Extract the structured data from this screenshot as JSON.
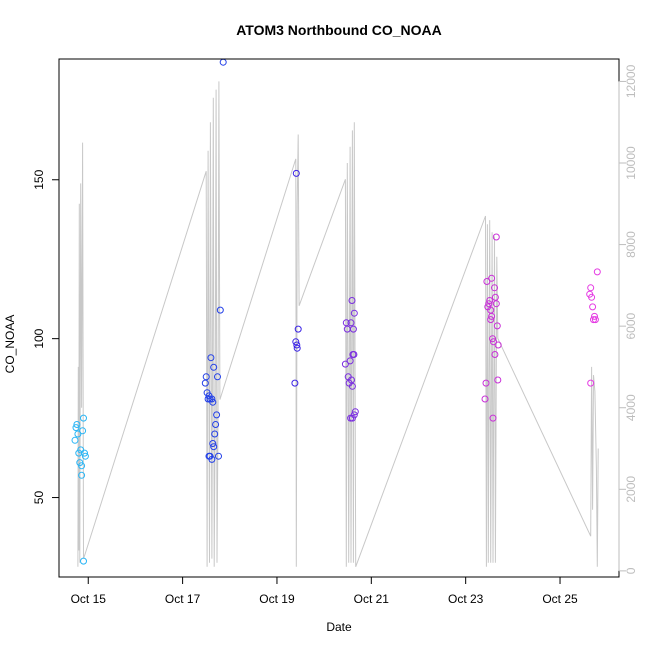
{
  "chart_data": {
    "type": "scatter",
    "title": "ATOM3 Northbound CO_NOAA",
    "xlabel": "Date",
    "ylabel": "CO_NOAA",
    "xlim": [
      14.38,
      26.25
    ],
    "ylim": [
      25,
      188
    ],
    "y2lim": [
      -150,
      12550
    ],
    "grid": false,
    "x_ticks": [
      {
        "value": 15,
        "label": "Oct 15"
      },
      {
        "value": 17,
        "label": "Oct 17"
      },
      {
        "value": 19,
        "label": "Oct 19"
      },
      {
        "value": 21,
        "label": "Oct 21"
      },
      {
        "value": 23,
        "label": "Oct 23"
      },
      {
        "value": 25,
        "label": "Oct 25"
      }
    ],
    "y_ticks": [
      50,
      100,
      150
    ],
    "y2_ticks": [
      0,
      2000,
      4000,
      6000,
      8000,
      10000,
      12000
    ],
    "altitude_series": {
      "color": "#c8c8c8",
      "points": [
        [
          14.78,
          100
        ],
        [
          14.79,
          5000
        ],
        [
          14.8,
          500
        ],
        [
          14.81,
          9000
        ],
        [
          14.82,
          200
        ],
        [
          14.84,
          9500
        ],
        [
          14.86,
          4000
        ],
        [
          14.88,
          10500
        ],
        [
          14.9,
          300
        ],
        [
          14.93,
          400
        ],
        [
          17.5,
          9800
        ],
        [
          17.52,
          100
        ],
        [
          17.54,
          10300
        ],
        [
          17.57,
          200
        ],
        [
          17.59,
          11000
        ],
        [
          17.62,
          300
        ],
        [
          17.65,
          11600
        ],
        [
          17.67,
          100
        ],
        [
          17.69,
          4000
        ],
        [
          17.71,
          11800
        ],
        [
          17.73,
          200
        ],
        [
          17.75,
          3700
        ],
        [
          17.77,
          12000
        ],
        [
          17.79,
          4200
        ],
        [
          19.4,
          10100
        ],
        [
          19.41,
          100
        ],
        [
          19.43,
          9000
        ],
        [
          19.45,
          10700
        ],
        [
          19.47,
          6500
        ],
        [
          20.45,
          9600
        ],
        [
          20.47,
          100
        ],
        [
          20.49,
          10000
        ],
        [
          20.52,
          200
        ],
        [
          20.55,
          10400
        ],
        [
          20.57,
          200
        ],
        [
          20.6,
          10800
        ],
        [
          20.62,
          200
        ],
        [
          20.64,
          11000
        ],
        [
          20.67,
          100
        ],
        [
          23.42,
          8700
        ],
        [
          23.44,
          100
        ],
        [
          23.46,
          8500
        ],
        [
          23.48,
          200
        ],
        [
          23.51,
          8600
        ],
        [
          23.53,
          200
        ],
        [
          23.56,
          8300
        ],
        [
          23.58,
          200
        ],
        [
          23.61,
          8200
        ],
        [
          23.63,
          200
        ],
        [
          23.66,
          7700
        ],
        [
          23.68,
          5700
        ],
        [
          25.65,
          850
        ],
        [
          25.67,
          5000
        ],
        [
          25.69,
          1500
        ],
        [
          25.71,
          4800
        ],
        [
          25.74,
          4400
        ],
        [
          25.77,
          2500
        ],
        [
          25.79,
          100
        ],
        [
          25.81,
          3000
        ]
      ]
    },
    "series": [
      {
        "color": "#29b6f6",
        "points": [
          [
            14.72,
            68
          ],
          [
            14.74,
            72
          ],
          [
            14.76,
            73
          ],
          [
            14.78,
            70
          ],
          [
            14.8,
            64
          ],
          [
            14.82,
            61
          ],
          [
            14.84,
            65
          ],
          [
            14.86,
            60
          ],
          [
            14.88,
            71
          ],
          [
            14.9,
            75
          ],
          [
            14.92,
            64
          ],
          [
            14.94,
            63
          ],
          [
            14.86,
            57
          ],
          [
            14.9,
            30
          ]
        ]
      },
      {
        "color": "#2340e8",
        "points": [
          [
            17.48,
            86
          ],
          [
            17.5,
            88
          ],
          [
            17.52,
            83
          ],
          [
            17.54,
            81
          ],
          [
            17.56,
            82
          ],
          [
            17.58,
            81
          ],
          [
            17.6,
            94
          ],
          [
            17.62,
            81
          ],
          [
            17.64,
            80
          ],
          [
            17.66,
            91
          ],
          [
            17.56,
            63
          ],
          [
            17.58,
            63
          ],
          [
            17.62,
            62
          ],
          [
            17.64,
            67
          ],
          [
            17.66,
            66
          ],
          [
            17.68,
            70
          ],
          [
            17.7,
            73
          ],
          [
            17.72,
            76
          ],
          [
            17.74,
            88
          ],
          [
            17.76,
            63
          ],
          [
            17.8,
            109
          ],
          [
            17.86,
            187
          ]
        ]
      },
      {
        "color": "#3a22e6",
        "points": [
          [
            19.38,
            86
          ],
          [
            19.4,
            99
          ],
          [
            19.42,
            98
          ],
          [
            19.43,
            97
          ],
          [
            19.45,
            103
          ],
          [
            19.41,
            152
          ]
        ]
      },
      {
        "color": "#7b2ee0",
        "points": [
          [
            20.45,
            92
          ],
          [
            20.47,
            105
          ],
          [
            20.49,
            103
          ],
          [
            20.51,
            88
          ],
          [
            20.53,
            86
          ],
          [
            20.55,
            93
          ],
          [
            20.57,
            105
          ],
          [
            20.59,
            112
          ],
          [
            20.61,
            95
          ],
          [
            20.63,
            95
          ],
          [
            20.58,
            87
          ],
          [
            20.6,
            85
          ],
          [
            20.62,
            103
          ],
          [
            20.64,
            108
          ],
          [
            20.56,
            75
          ],
          [
            20.6,
            75
          ],
          [
            20.64,
            76
          ],
          [
            20.66,
            77
          ]
        ]
      },
      {
        "color": "#c930d8",
        "points": [
          [
            23.41,
            81
          ],
          [
            23.43,
            86
          ],
          [
            23.45,
            118
          ],
          [
            23.47,
            110
          ],
          [
            23.49,
            111
          ],
          [
            23.51,
            112
          ],
          [
            23.53,
            109
          ],
          [
            23.55,
            119
          ],
          [
            23.57,
            100
          ],
          [
            23.59,
            99
          ],
          [
            23.61,
            116
          ],
          [
            23.63,
            113
          ],
          [
            23.65,
            111
          ],
          [
            23.67,
            104
          ],
          [
            23.69,
            98
          ],
          [
            23.53,
            106
          ],
          [
            23.55,
            107
          ],
          [
            23.58,
            75
          ],
          [
            23.62,
            95
          ],
          [
            23.65,
            132
          ],
          [
            23.68,
            87
          ]
        ]
      },
      {
        "color": "#e53be3",
        "points": [
          [
            25.63,
            114
          ],
          [
            25.65,
            116
          ],
          [
            25.67,
            113
          ],
          [
            25.69,
            110
          ],
          [
            25.71,
            106
          ],
          [
            25.73,
            107
          ],
          [
            25.75,
            106
          ],
          [
            25.79,
            121
          ],
          [
            25.65,
            86
          ]
        ]
      }
    ]
  }
}
